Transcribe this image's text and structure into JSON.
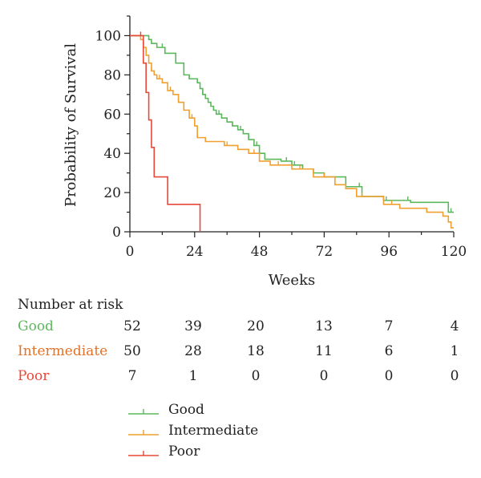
{
  "chart_data": {
    "type": "line",
    "subtype": "kaplan-meier",
    "xlabel": "Weeks",
    "ylabel": "Probability of Survival",
    "xlim": [
      0,
      120
    ],
    "ylim": [
      0,
      110
    ],
    "xticks": [
      0,
      24,
      48,
      72,
      96,
      120
    ],
    "yticks": [
      0,
      20,
      40,
      60,
      80,
      100
    ],
    "grid": false,
    "legend_position": "bottom",
    "series": [
      {
        "name": "Good",
        "color": "#5cb85c",
        "x": [
          0,
          7,
          8,
          10,
          13,
          17,
          20,
          22,
          25,
          26,
          27,
          28,
          29,
          30,
          31,
          32,
          34,
          36,
          38,
          40,
          42,
          44,
          46,
          48,
          50,
          56,
          60,
          64,
          68,
          72,
          80,
          86,
          94,
          104,
          118,
          120
        ],
        "y": [
          100,
          98,
          96,
          94,
          91,
          86,
          80,
          78,
          76,
          73,
          70,
          68,
          66,
          64,
          62,
          60,
          58,
          56,
          54,
          52,
          50,
          47,
          44,
          40,
          37,
          36,
          34,
          32,
          30,
          28,
          23,
          18,
          16,
          15,
          10,
          10
        ],
        "censored_x": [
          12,
          22,
          27,
          33,
          38,
          41,
          44,
          47,
          58,
          61,
          64,
          72,
          85,
          95,
          103,
          119
        ]
      },
      {
        "name": "Intermediate",
        "color": "#f0a030",
        "x": [
          0,
          4,
          5,
          6,
          7,
          8,
          9,
          10,
          12,
          14,
          16,
          18,
          20,
          22,
          24,
          25,
          28,
          32,
          35,
          40,
          44,
          48,
          52,
          60,
          68,
          76,
          80,
          84,
          94,
          100,
          110,
          116,
          118,
          119,
          120
        ],
        "y": [
          100,
          98,
          94,
          90,
          86,
          82,
          80,
          78,
          76,
          72,
          70,
          66,
          62,
          58,
          54,
          48,
          46,
          46,
          44,
          42,
          40,
          36,
          34,
          32,
          28,
          24,
          22,
          18,
          14,
          12,
          10,
          8,
          5,
          2,
          2
        ],
        "censored_x": [
          8,
          11,
          15,
          18,
          23,
          25,
          36,
          46,
          55,
          63,
          72,
          86,
          97,
          110
        ]
      },
      {
        "name": "Poor",
        "color": "#e8483a",
        "x": [
          0,
          5,
          6,
          7,
          8,
          9,
          10,
          14,
          22,
          26
        ],
        "y": [
          100,
          86,
          71,
          57,
          43,
          28,
          28,
          14,
          14,
          0
        ],
        "censored_x": [
          4
        ]
      }
    ]
  },
  "risk_table": {
    "title": "Number at risk",
    "weeks": [
      0,
      24,
      48,
      72,
      96,
      120
    ],
    "rows": [
      {
        "label": "Good",
        "color": "#5cb85c",
        "values": [
          "52",
          "39",
          "20",
          "13",
          "7",
          "4"
        ]
      },
      {
        "label": "Intermediate",
        "color": "#e0732a",
        "values": [
          "50",
          "28",
          "18",
          "11",
          "6",
          "1"
        ]
      },
      {
        "label": "Poor",
        "color": "#e8483a",
        "values": [
          "7",
          "1",
          "0",
          "0",
          "0",
          "0"
        ]
      }
    ]
  },
  "legend": {
    "items": [
      {
        "label": "Good",
        "color": "#5cb85c"
      },
      {
        "label": "Intermediate",
        "color": "#f0a030"
      },
      {
        "label": "Poor",
        "color": "#e8483a"
      }
    ]
  }
}
